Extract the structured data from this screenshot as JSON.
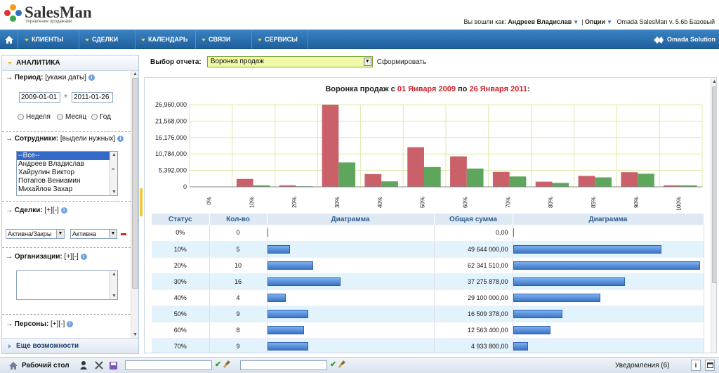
{
  "header": {
    "logo_text": "SalesMan",
    "logo_tagline": "Управление продажами",
    "logged_in_label": "Вы вошли как:",
    "user_name": "Андреев Владислав",
    "options_label": "Опции",
    "version": "Omada SalesMan v. 5.6b Базовый"
  },
  "nav": {
    "items": [
      {
        "label": "КЛИЕНТЫ"
      },
      {
        "label": "СДЕЛКИ"
      },
      {
        "label": "КАЛЕНДАРЬ"
      },
      {
        "label": "СВЯЗИ"
      },
      {
        "label": "СЕРВИСЫ"
      }
    ],
    "brand": "Omada Solution"
  },
  "sidebar": {
    "title": "АНАЛИТИКА",
    "period_label": "Период:",
    "period_hint": "[укажи даты]",
    "date_from": "2009-01-01",
    "date_sep": "÷",
    "date_to": "2011-01-26",
    "radio_week": "Неделя",
    "radio_month": "Месяц",
    "radio_year": "Год",
    "employees_label": "Сотрудники:",
    "employees_hint": "[выдели нужных]",
    "employees": [
      "--Все--",
      "Андреев Владислав",
      "Хайрулин Виктор",
      "Потапов Вениамин",
      "Михайлов Захар"
    ],
    "deals_label": "Сделки:",
    "deals_hint": "[+][-]",
    "deal_filter_1": "Активна/Закры",
    "deal_filter_2": "Активна",
    "orgs_label": "Организации:",
    "orgs_hint": "[+][-]",
    "persons_label": "Персоны:",
    "persons_hint": "[+][-]",
    "more": "Еще возможности"
  },
  "report": {
    "select_label": "Выбор отчета:",
    "selected": "Воронка продаж",
    "generate": "Сформировать"
  },
  "chart_data": {
    "type": "bar",
    "title_prefix": "Воронка продаж с",
    "title_from": "01 Января 2009",
    "title_mid": "по",
    "title_to": "26 Января 2011",
    "title_suffix": ":",
    "categories": [
      "0%",
      "10%",
      "20%",
      "30%",
      "40%",
      "50%",
      "60%",
      "70%",
      "80%",
      "85%",
      "90%",
      "100%"
    ],
    "y_ticks": [
      "0",
      "5,392,000",
      "10,784,000",
      "16,176,000",
      "21,568,000",
      "26,960,000"
    ],
    "ylim": [
      0,
      26960000
    ],
    "series": [
      {
        "color": "#c9606a",
        "values": [
          0,
          2600000,
          500000,
          26960000,
          4200000,
          13000000,
          10000000,
          4900000,
          1700000,
          3600000,
          4800000,
          500000
        ]
      },
      {
        "color": "#5ea65b",
        "values": [
          0,
          500000,
          200000,
          8000000,
          1800000,
          6500000,
          6000000,
          3400000,
          1300000,
          3100000,
          4300000,
          500000
        ]
      }
    ],
    "grid": true
  },
  "funnel_table": {
    "headers": [
      "Статус",
      "Кол-во",
      "Диаграмма",
      "Общая сумма",
      "Диаграмма"
    ],
    "rows": [
      {
        "status": "0%",
        "count": "0",
        "count_frac": 0,
        "sum": "0,00",
        "sum_frac": 0
      },
      {
        "status": "10%",
        "count": "5",
        "count_frac": 0.3125,
        "sum": "49 644 000,00",
        "sum_frac": 0.7963
      },
      {
        "status": "20%",
        "count": "10",
        "count_frac": 0.625,
        "sum": "62 341 510,00",
        "sum_frac": 1.0
      },
      {
        "status": "30%",
        "count": "16",
        "count_frac": 1.0,
        "sum": "37 275 878,00",
        "sum_frac": 0.598
      },
      {
        "status": "40%",
        "count": "4",
        "count_frac": 0.25,
        "sum": "29 100 000,00",
        "sum_frac": 0.4668
      },
      {
        "status": "50%",
        "count": "9",
        "count_frac": 0.5625,
        "sum": "16 509 378,00",
        "sum_frac": 0.2648
      },
      {
        "status": "60%",
        "count": "8",
        "count_frac": 0.5,
        "sum": "12 563 400,00",
        "sum_frac": 0.2015
      },
      {
        "status": "70%",
        "count": "9",
        "count_frac": 0.5625,
        "sum": "4 933 800,00",
        "sum_frac": 0.0791
      }
    ]
  },
  "statusbar": {
    "desktop": "Рабочий стол",
    "notifications": "Уведомления (6)"
  }
}
